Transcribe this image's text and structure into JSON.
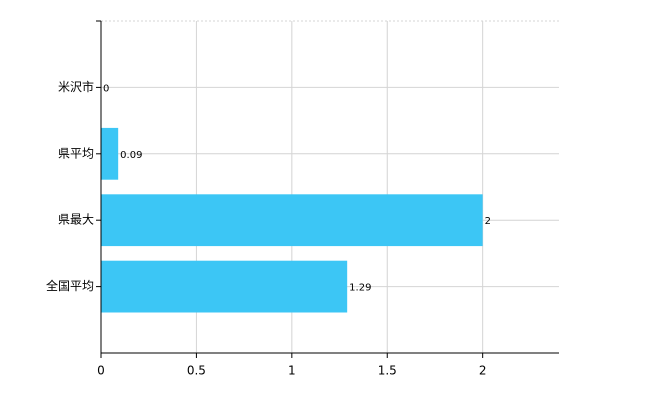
{
  "chart_data": {
    "type": "barh",
    "categories": [
      "米沢市",
      "県平均",
      "県最大",
      "全国平均"
    ],
    "values": [
      0,
      0.09,
      2,
      1.29
    ],
    "color": "#3cc6f5",
    "xlim": [
      0,
      2.4
    ],
    "xticks": [
      0,
      0.5,
      1,
      1.5,
      2
    ],
    "grid": true
  }
}
